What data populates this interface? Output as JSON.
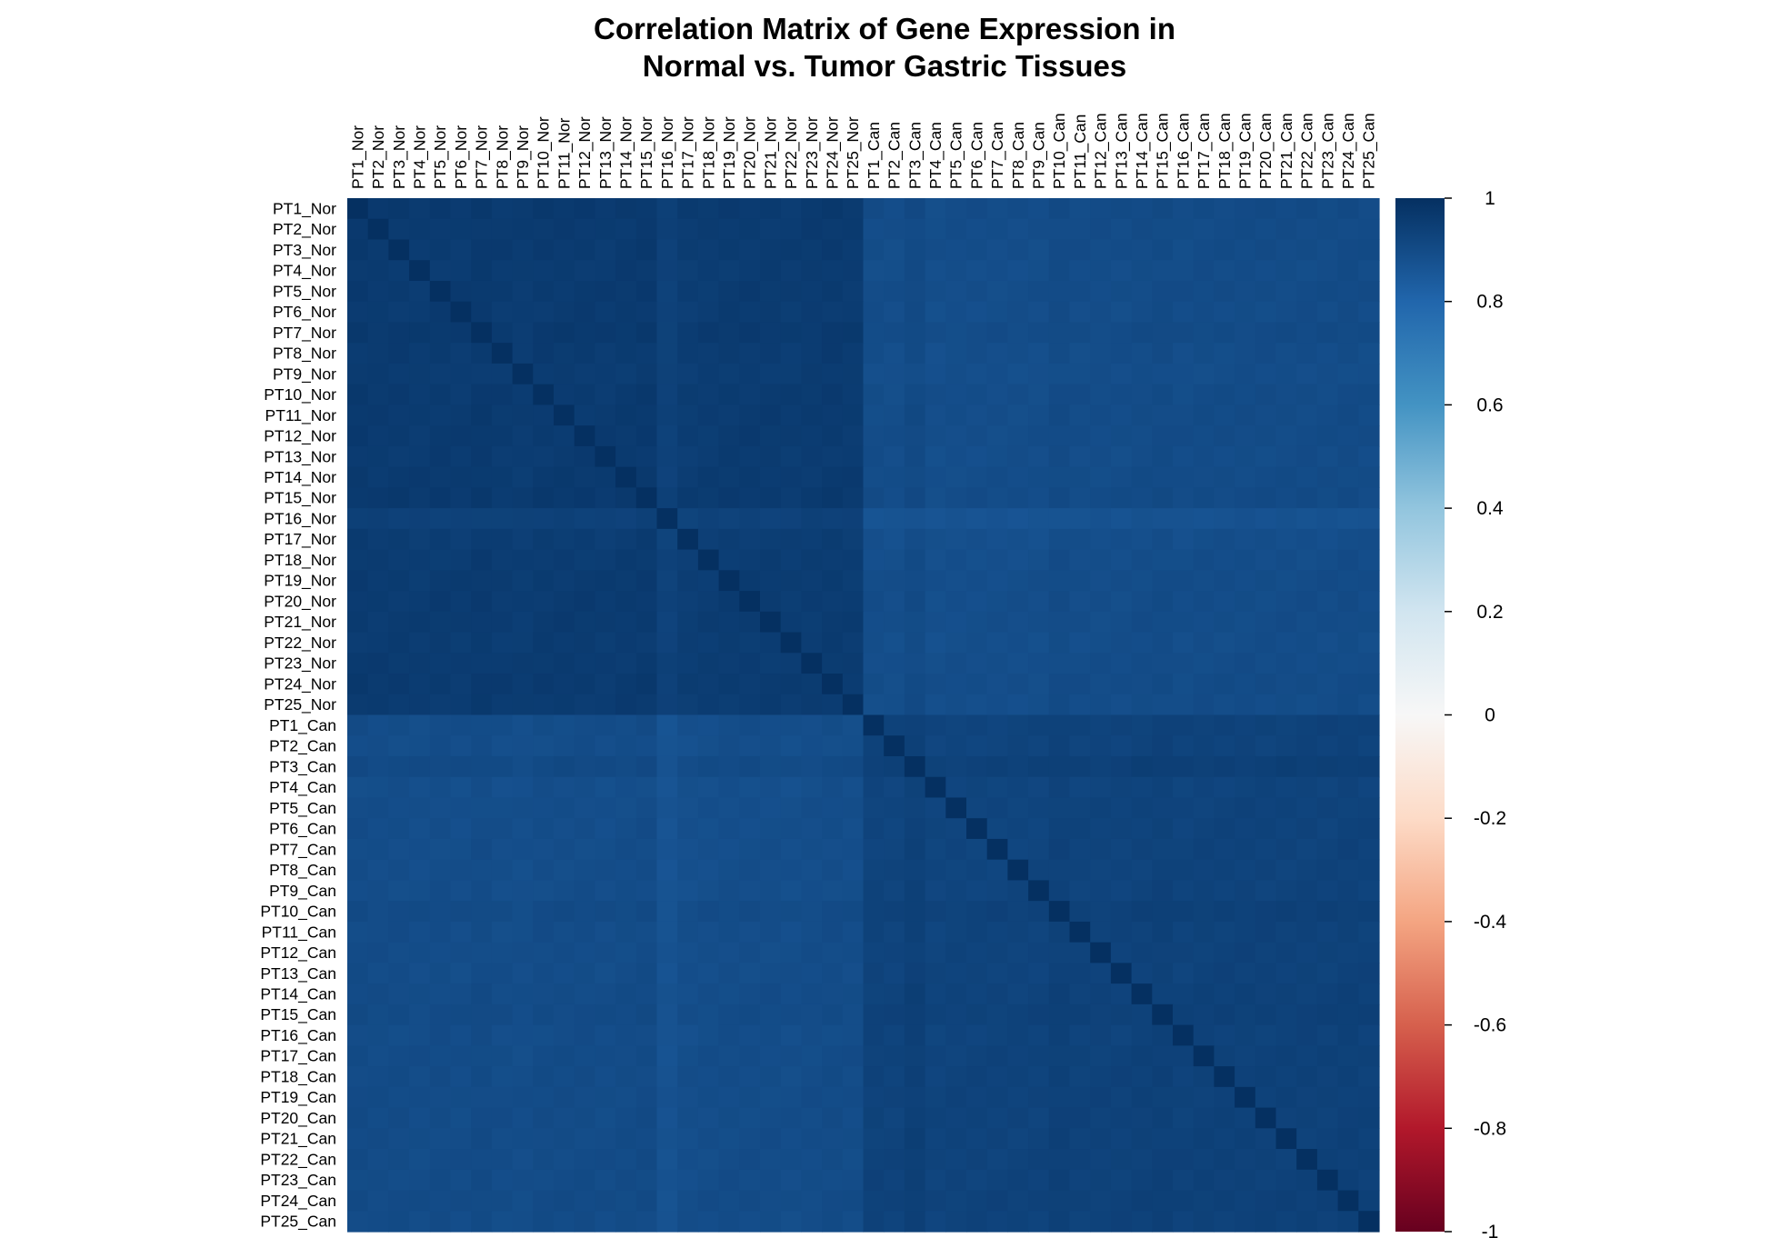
{
  "chart_data": {
    "type": "heatmap",
    "title": [
      "Correlation Matrix of Gene Expression in",
      "Normal vs. Tumor Gastric Tissues"
    ],
    "labels": [
      "PT1_Nor",
      "PT2_Nor",
      "PT3_Nor",
      "PT4_Nor",
      "PT5_Nor",
      "PT6_Nor",
      "PT7_Nor",
      "PT8_Nor",
      "PT9_Nor",
      "PT10_Nor",
      "PT11_Nor",
      "PT12_Nor",
      "PT13_Nor",
      "PT14_Nor",
      "PT15_Nor",
      "PT16_Nor",
      "PT17_Nor",
      "PT18_Nor",
      "PT19_Nor",
      "PT20_Nor",
      "PT21_Nor",
      "PT22_Nor",
      "PT23_Nor",
      "PT24_Nor",
      "PT25_Nor",
      "PT1_Can",
      "PT2_Can",
      "PT3_Can",
      "PT4_Can",
      "PT5_Can",
      "PT6_Can",
      "PT7_Can",
      "PT8_Can",
      "PT9_Can",
      "PT10_Can",
      "PT11_Can",
      "PT12_Can",
      "PT13_Can",
      "PT14_Can",
      "PT15_Can",
      "PT16_Can",
      "PT17_Can",
      "PT18_Can",
      "PT19_Can",
      "PT20_Can",
      "PT21_Can",
      "PT22_Can",
      "PT23_Can",
      "PT24_Can",
      "PT25_Can"
    ],
    "color_range": [
      -1,
      1
    ],
    "colorbar_ticks": [
      "1",
      "0.8",
      "0.6",
      "0.4",
      "0.2",
      "0",
      "-0.2",
      "-0.4",
      "-0.6",
      "-0.8",
      "-1"
    ],
    "colorbar_colors": {
      "neg": "#67001F",
      "zero": "#F7F7F7",
      "pos": "#053061"
    },
    "group_correlation": {
      "normal_normal": 0.95,
      "tumor_tumor": 0.93,
      "normal_tumor": 0.89,
      "diagonal": 1.0
    },
    "approx_row_bias": [
      0.015,
      0.01,
      0.01,
      0.005,
      0.01,
      0.005,
      0.015,
      0.005,
      0.0,
      0.01,
      0.01,
      0.01,
      0.005,
      0.01,
      0.015,
      -0.03,
      -0.005,
      0.0,
      0.005,
      0.005,
      0.005,
      0.0,
      0.005,
      0.01,
      0.005,
      0.0,
      -0.005,
      0.015,
      -0.01,
      -0.005,
      -0.005,
      -0.005,
      -0.005,
      -0.005,
      0.01,
      0.0,
      0.0,
      0.0,
      0.005,
      0.01,
      0.0,
      0.005,
      0.005,
      0.005,
      0.005,
      0.005,
      0.005,
      0.005,
      0.01,
      0.005
    ]
  }
}
